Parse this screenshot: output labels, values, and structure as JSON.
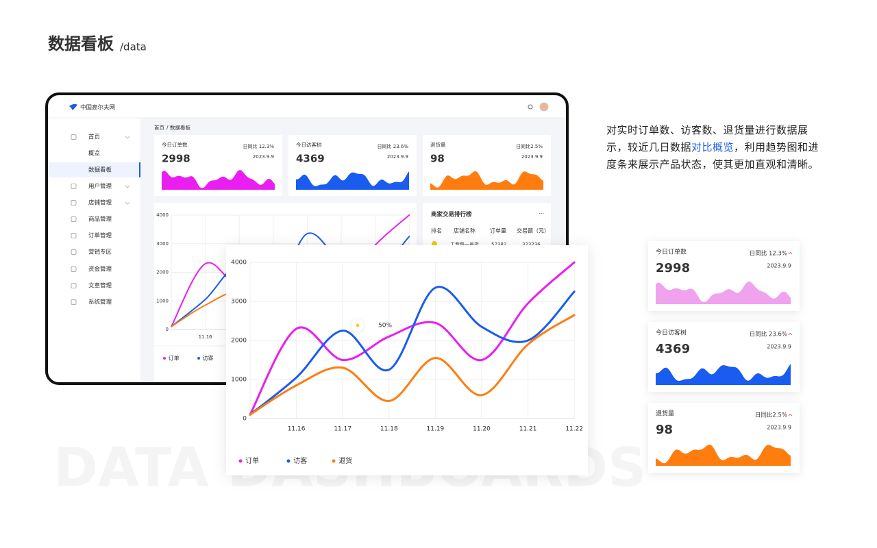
{
  "header": {
    "title": "数据看板",
    "subtitle": "/data"
  },
  "app": {
    "logo": "中国高尔夫网",
    "breadcrumb": {
      "home": "首页",
      "separator": "/",
      "current": "数据看板"
    },
    "menu": [
      {
        "label": "首页",
        "children": [
          "概览",
          "数据看板"
        ]
      },
      {
        "label": "用户管理"
      },
      {
        "label": "店铺管理"
      },
      {
        "label": "商品管理"
      },
      {
        "label": "订单管理"
      },
      {
        "label": "营销专区"
      },
      {
        "label": "资金管理"
      },
      {
        "label": "文章管理"
      },
      {
        "label": "系统管理"
      }
    ]
  },
  "cards": [
    {
      "title": "今日订单数",
      "compare": "日同比 12.3%",
      "value": 2998,
      "date": "2023.9.9"
    },
    {
      "title": "今日访客树",
      "compare": "日同比 23.6%",
      "value": 4369,
      "date": "2023.9.9"
    },
    {
      "title": "退货量",
      "compare": "日同比2.5%",
      "value": 98,
      "date": "2023.9.9"
    }
  ],
  "ranking": {
    "title": "商家交易排行榜",
    "more": "···",
    "columns": [
      "排名",
      "店铺名称",
      "订单量",
      "交易额（元）"
    ],
    "rows": [
      [
        "工专路一号店",
        "52382",
        "323236"
      ]
    ]
  },
  "description": {
    "before": "对实时订单数、访客数、退货量进行数据展示，较近几日数据",
    "highlight": "对比概览",
    "after": "，利用趋势图和进度条来展示产品状态，使其更加直观和清晰。"
  },
  "watermark": "DATA DASHBOARDS",
  "chart_data": {
    "type": "line",
    "categories": [
      null,
      "11.16",
      "11.17",
      "11.18",
      "11.19",
      "11.20",
      "11.21",
      "11.22"
    ],
    "series": [
      {
        "name": "订单",
        "color": "#ea1ef0",
        "values": [
          100,
          2300,
          1500,
          2100,
          2450,
          1500,
          2950,
          4000
        ]
      },
      {
        "name": "访客",
        "color": "#1a5cf0",
        "values": [
          100,
          1050,
          2250,
          1250,
          3350,
          2350,
          2000,
          3250
        ]
      },
      {
        "name": "退货",
        "color": "#ff7d0f",
        "values": [
          100,
          850,
          1300,
          450,
          1550,
          600,
          1900,
          2650
        ]
      }
    ],
    "ylim": [
      0,
      4000
    ],
    "yticks": [
      0,
      1000,
      2000,
      3000,
      4000
    ],
    "grid": true,
    "annotation": "50%"
  }
}
